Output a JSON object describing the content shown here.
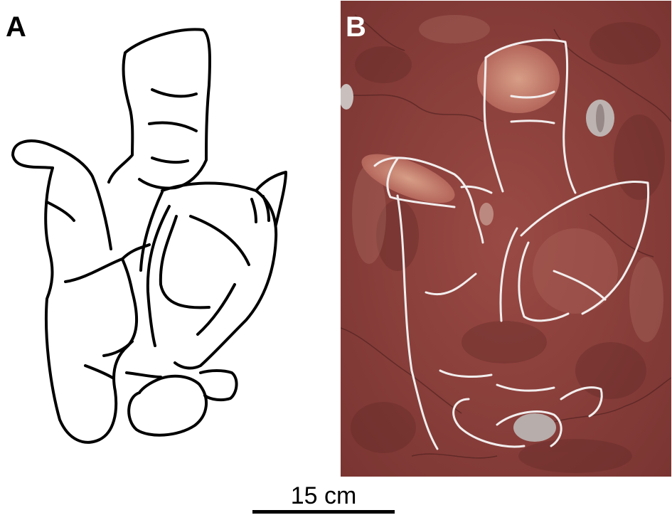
{
  "panels": {
    "a_label": "A",
    "b_label": "B"
  },
  "scale": {
    "label": "15 cm"
  },
  "colors": {
    "outline": "#000000",
    "rock": "#8a3f3a",
    "chalk": "#f2eeee",
    "tint": "#d69a84"
  }
}
